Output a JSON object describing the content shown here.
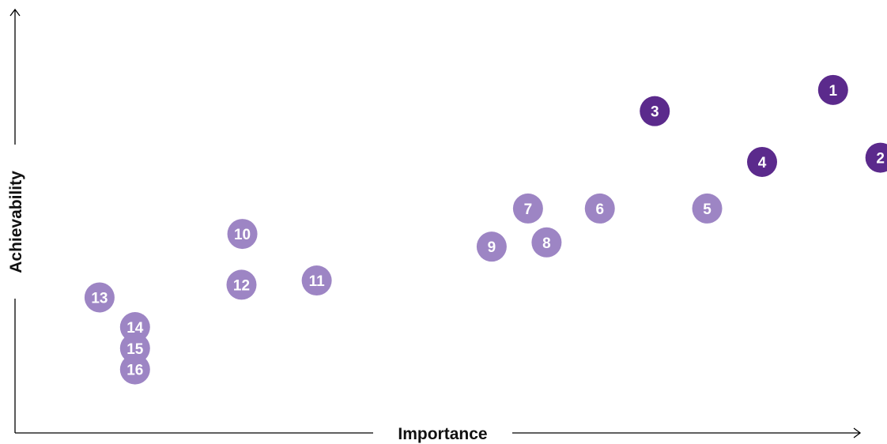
{
  "chart_data": {
    "type": "scatter",
    "title": "",
    "xlabel": "Importance",
    "ylabel": "Achievability",
    "xlim": [
      0,
      100
    ],
    "ylim": [
      0,
      100
    ],
    "grid": false,
    "colors": {
      "highlight": "#5b2a8c",
      "normal": "#9d85c4",
      "axis": "#000000"
    },
    "points": [
      {
        "label": "1",
        "x": 96.8,
        "y": 81,
        "group": "highlight"
      },
      {
        "label": "2",
        "x": 102.4,
        "y": 65,
        "group": "highlight"
      },
      {
        "label": "3",
        "x": 75.7,
        "y": 76,
        "group": "highlight"
      },
      {
        "label": "4",
        "x": 88.4,
        "y": 64,
        "group": "highlight"
      },
      {
        "label": "5",
        "x": 81.9,
        "y": 53,
        "group": "normal"
      },
      {
        "label": "6",
        "x": 69.2,
        "y": 53,
        "group": "normal"
      },
      {
        "label": "7",
        "x": 60.7,
        "y": 53,
        "group": "normal"
      },
      {
        "label": "8",
        "x": 62.9,
        "y": 45,
        "group": "normal"
      },
      {
        "label": "9",
        "x": 56.4,
        "y": 44,
        "group": "normal"
      },
      {
        "label": "10",
        "x": 26.9,
        "y": 47,
        "group": "normal"
      },
      {
        "label": "11",
        "x": 35.7,
        "y": 36,
        "group": "normal"
      },
      {
        "label": "12",
        "x": 26.8,
        "y": 35,
        "group": "normal"
      },
      {
        "label": "13",
        "x": 10.0,
        "y": 32,
        "group": "normal"
      },
      {
        "label": "14",
        "x": 14.2,
        "y": 25,
        "group": "normal"
      },
      {
        "label": "15",
        "x": 14.2,
        "y": 20,
        "group": "normal"
      },
      {
        "label": "16",
        "x": 14.2,
        "y": 15,
        "group": "normal"
      }
    ]
  }
}
